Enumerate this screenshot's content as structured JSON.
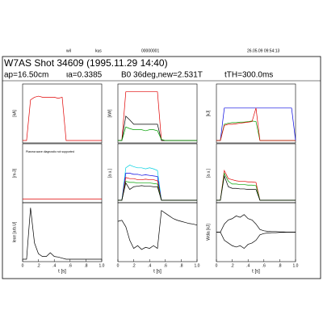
{
  "header": {
    "user": "wil",
    "host": "kus",
    "number": "00000001",
    "stamp": "26.05.09  09:54:13",
    "title": "W7AS Shot 34609 (1995.11.29 14:40)",
    "params": [
      "ap=16.50cm",
      "ιa=0.3385",
      "B0 36deg,new=2.531T",
      "tTH=300.0ms"
    ]
  },
  "chart_data": [
    {
      "type": "line",
      "ylabel": "[kA]",
      "xlim": [
        0,
        1
      ],
      "ylim": [
        0,
        1
      ],
      "x": [
        0,
        0.05,
        0.1,
        0.15,
        0.2,
        0.25,
        0.3,
        0.35,
        0.4,
        0.45,
        0.5,
        0.55,
        0.6,
        0.65,
        0.7,
        0.75,
        0.8,
        0.85,
        0.9,
        0.95,
        1.0
      ],
      "series": [
        {
          "color": "#e00000",
          "values": [
            0,
            0,
            0.75,
            0.8,
            0.82,
            0.8,
            0.8,
            0.8,
            0.8,
            0.78,
            0.8,
            0,
            0,
            0,
            0,
            0,
            0,
            0,
            0,
            0,
            0
          ]
        }
      ]
    },
    {
      "type": "line",
      "ylabel": "[m-3]",
      "annotation": "Plasma wave diagnostic not supported",
      "xlim": [
        0,
        1
      ],
      "ylim": [
        0,
        1
      ],
      "x": [
        0,
        0.05,
        0.1,
        0.15,
        0.2,
        0.25,
        0.3,
        0.35,
        0.4,
        0.45,
        0.5,
        0.55,
        0.6,
        0.65,
        0.7,
        0.75,
        0.8,
        0.85,
        0.9,
        0.95,
        1.0
      ],
      "series": [
        {
          "color": "#e00000",
          "values": [
            0.02,
            0.02,
            0.02,
            0.02,
            0.02,
            0.02,
            0.02,
            0.02,
            0.02,
            0.02,
            0.02,
            0.02,
            0.02,
            0.02,
            0.02,
            0.02,
            0.02,
            0.02,
            0.02,
            0.02,
            0.02
          ]
        }
      ]
    },
    {
      "type": "line",
      "ylabel": "Iece [arb.U]",
      "xlim": [
        0,
        1
      ],
      "ylim": [
        0,
        1
      ],
      "xticks": [
        0,
        {
          "value": 0.2,
          "label": ".2"
        },
        {
          "value": 0.4,
          "label": ".4"
        },
        {
          "value": 0.6,
          "label": ".6"
        },
        {
          "value": 0.8,
          "label": ".8"
        },
        {
          "value": 1.0,
          "label": "1.0"
        }
      ],
      "xlabel": "t [s]",
      "x": [
        0,
        0.05,
        0.1,
        0.15,
        0.2,
        0.25,
        0.3,
        0.35,
        0.4,
        0.45,
        0.5,
        0.55,
        0.6,
        0.65,
        0.7,
        0.75,
        0.8,
        0.85,
        0.9,
        0.95,
        1.0
      ],
      "series": [
        {
          "color": "#000000",
          "values": [
            0,
            0,
            0.95,
            0.3,
            0.1,
            0.05,
            0.05,
            0.12,
            0.05,
            0.04,
            0.02,
            0,
            0,
            0,
            0,
            0,
            0,
            0,
            0,
            0,
            0
          ]
        }
      ]
    },
    {
      "type": "line",
      "ylabel": "[kW]",
      "xlim": [
        0,
        1
      ],
      "ylim": [
        0,
        1
      ],
      "x": [
        0,
        0.05,
        0.1,
        0.15,
        0.2,
        0.25,
        0.3,
        0.35,
        0.4,
        0.45,
        0.5,
        0.55,
        0.6,
        0.65,
        0.7,
        0.75,
        0.8,
        0.85,
        0.9,
        0.95,
        1.0
      ],
      "series": [
        {
          "color": "#e00000",
          "values": [
            0,
            0,
            0.9,
            0.9,
            0.9,
            0.9,
            0.9,
            0.9,
            0.9,
            0.9,
            0.9,
            0,
            0,
            0,
            0,
            0,
            0,
            0,
            0,
            0,
            0
          ]
        },
        {
          "color": "#000000",
          "values": [
            0,
            0,
            0.45,
            0.38,
            0.3,
            0.3,
            0.3,
            0.3,
            0.3,
            0.3,
            0.3,
            0,
            0,
            0,
            0,
            0,
            0,
            0,
            0,
            0,
            0
          ]
        },
        {
          "color": "#00a000",
          "values": [
            0,
            0,
            0.25,
            0.22,
            0.2,
            0.2,
            0.2,
            0.18,
            0.2,
            0.2,
            0.18,
            0.02,
            0,
            0,
            0,
            0,
            0,
            0,
            0,
            0,
            0
          ]
        }
      ]
    },
    {
      "type": "line",
      "ylabel": "[a.u.]",
      "xlim": [
        0,
        1
      ],
      "ylim": [
        0,
        1
      ],
      "x": [
        0,
        0.05,
        0.1,
        0.15,
        0.2,
        0.25,
        0.3,
        0.35,
        0.4,
        0.45,
        0.5,
        0.55,
        0.6,
        0.65,
        0.7,
        0.75,
        0.8,
        0.85,
        0.9,
        0.95,
        1.0
      ],
      "series": [
        {
          "color": "#00d0e0",
          "values": [
            0,
            0,
            0.6,
            0.65,
            0.62,
            0.6,
            0.6,
            0.58,
            0.6,
            0.58,
            0.55,
            0,
            0,
            0,
            0,
            0,
            0,
            0,
            0,
            0,
            0
          ]
        },
        {
          "color": "#0000e0",
          "values": [
            0,
            0,
            0.5,
            0.5,
            0.48,
            0.48,
            0.46,
            0.47,
            0.46,
            0.45,
            0.44,
            0,
            0,
            0,
            0,
            0,
            0,
            0,
            0,
            0,
            0
          ]
        },
        {
          "color": "#e00000",
          "values": [
            0,
            0,
            0.42,
            0.4,
            0.4,
            0.38,
            0.38,
            0.39,
            0.38,
            0.38,
            0.36,
            0,
            0,
            0,
            0,
            0,
            0,
            0,
            0,
            0,
            0
          ]
        },
        {
          "color": "#00a000",
          "values": [
            0,
            0,
            0.35,
            0.33,
            0.33,
            0.32,
            0.32,
            0.32,
            0.32,
            0.31,
            0.3,
            0,
            0,
            0,
            0,
            0,
            0,
            0,
            0,
            0,
            0
          ]
        },
        {
          "color": "#000000",
          "values": [
            0,
            0,
            0.32,
            0.2,
            0.25,
            0.26,
            0.27,
            0.26,
            0.26,
            0.25,
            0.25,
            0,
            0,
            0,
            0,
            0,
            0,
            0,
            0,
            0,
            0
          ]
        }
      ]
    },
    {
      "type": "line",
      "xlim": [
        0,
        1
      ],
      "ylim": [
        0,
        1
      ],
      "xticks": [
        0,
        {
          "value": 0.2,
          "label": ".2"
        },
        {
          "value": 0.4,
          "label": ".4"
        },
        {
          "value": 0.6,
          "label": ".6"
        },
        {
          "value": 0.8,
          "label": ".8"
        },
        {
          "value": 1.0,
          "label": "1.0"
        }
      ],
      "xlabel": "t [s]",
      "x": [
        0,
        0.05,
        0.1,
        0.15,
        0.2,
        0.25,
        0.3,
        0.35,
        0.4,
        0.45,
        0.5,
        0.55,
        0.6,
        0.65,
        0.7,
        0.75,
        0.8,
        0.85,
        0.9,
        0.95,
        1.0
      ],
      "series": [
        {
          "color": "#000000",
          "values": [
            0.7,
            0.72,
            0.6,
            0.35,
            0.2,
            0.25,
            0.18,
            0.22,
            0.2,
            0.25,
            0.2,
            0.9,
            0.85,
            0.8,
            0.75,
            0.72,
            0.7,
            0.68,
            0.66,
            0.65,
            0.63
          ]
        }
      ]
    },
    {
      "type": "line",
      "ylabel": "[kJ]",
      "xlim": [
        0,
        1
      ],
      "ylim": [
        0,
        1
      ],
      "x": [
        0,
        0.05,
        0.1,
        0.15,
        0.2,
        0.25,
        0.3,
        0.35,
        0.4,
        0.45,
        0.5,
        0.55,
        0.6,
        0.65,
        0.7,
        0.75,
        0.8,
        0.85,
        0.9,
        0.95,
        1.0
      ],
      "series": [
        {
          "color": "#0000e0",
          "values": [
            0,
            0,
            0.6,
            0.6,
            0.6,
            0.6,
            0.6,
            0.6,
            0.6,
            0.6,
            0.6,
            0.6,
            0.6,
            0.6,
            0.6,
            0.6,
            0.6,
            0.6,
            0.6,
            0.6,
            0
          ]
        },
        {
          "color": "#00a000",
          "values": [
            0,
            0,
            0.3,
            0.32,
            0.33,
            0.33,
            0.34,
            0.34,
            0.35,
            0.36,
            0.35,
            0,
            0,
            0,
            0,
            0,
            0,
            0,
            0,
            0,
            0
          ]
        },
        {
          "color": "#e00000",
          "values": [
            0,
            0,
            0.28,
            0.3,
            0.3,
            0.31,
            0.32,
            0.33,
            0.34,
            0.35,
            0.6,
            0,
            0,
            0,
            0,
            0,
            0,
            0,
            0,
            0,
            0
          ]
        }
      ]
    },
    {
      "type": "line",
      "ylabel": "[a.u.]",
      "xlim": [
        0,
        1
      ],
      "ylim": [
        0,
        1
      ],
      "x": [
        0,
        0.05,
        0.1,
        0.15,
        0.2,
        0.25,
        0.3,
        0.35,
        0.4,
        0.45,
        0.5,
        0.55,
        0.6,
        0.65,
        0.7,
        0.75,
        0.8,
        0.85,
        0.9,
        0.95,
        1.0
      ],
      "series": [
        {
          "color": "#e00000",
          "values": [
            0,
            0,
            0.55,
            0.4,
            0.38,
            0.36,
            0.35,
            0.35,
            0.34,
            0.34,
            0.33,
            0,
            0,
            0,
            0,
            0,
            0,
            0,
            0,
            0,
            0
          ]
        },
        {
          "color": "#00a000",
          "values": [
            0,
            0,
            0.5,
            0.35,
            0.3,
            0.3,
            0.29,
            0.29,
            0.28,
            0.28,
            0.27,
            0,
            0,
            0,
            0,
            0,
            0,
            0,
            0,
            0,
            0
          ]
        },
        {
          "color": "#000000",
          "values": [
            0,
            0,
            0.45,
            0.25,
            0.22,
            0.22,
            0.21,
            0.21,
            0.2,
            0.2,
            0.2,
            0,
            0,
            0,
            0,
            0,
            0,
            0,
            0,
            0,
            0
          ]
        }
      ]
    },
    {
      "type": "line",
      "ylabel": "Wdia [kJ]",
      "xlim": [
        0,
        1
      ],
      "ylim": [
        -1,
        1
      ],
      "xticks": [
        0,
        {
          "value": 0.2,
          "label": ".2"
        },
        {
          "value": 0.4,
          "label": ".4"
        },
        {
          "value": 0.6,
          "label": ".6"
        },
        {
          "value": 0.8,
          "label": ".8"
        },
        {
          "value": 1.0,
          "label": "1.0"
        }
      ],
      "xlabel": "t [s]",
      "x": [
        0,
        0.05,
        0.1,
        0.15,
        0.2,
        0.25,
        0.3,
        0.35,
        0.4,
        0.45,
        0.5,
        0.55,
        0.6,
        0.65,
        0.7,
        0.75,
        0.8,
        0.85,
        0.9,
        0.95,
        1.0
      ],
      "series": [
        {
          "color": "#000000",
          "values": [
            0,
            0,
            0.3,
            0.45,
            0.5,
            0.6,
            0.55,
            0.65,
            0.5,
            0.45,
            0.3,
            0.1,
            0.05,
            0.03,
            0.02,
            0.02,
            0.01,
            0.01,
            0,
            0,
            0
          ]
        },
        {
          "color": "#000000",
          "values": [
            0,
            0,
            -0.3,
            -0.4,
            -0.5,
            -0.55,
            -0.5,
            -0.6,
            -0.45,
            -0.4,
            -0.3,
            -0.1,
            -0.05,
            -0.03,
            -0.02,
            -0.02,
            -0.01,
            -0.01,
            0,
            0,
            0
          ]
        }
      ]
    }
  ]
}
